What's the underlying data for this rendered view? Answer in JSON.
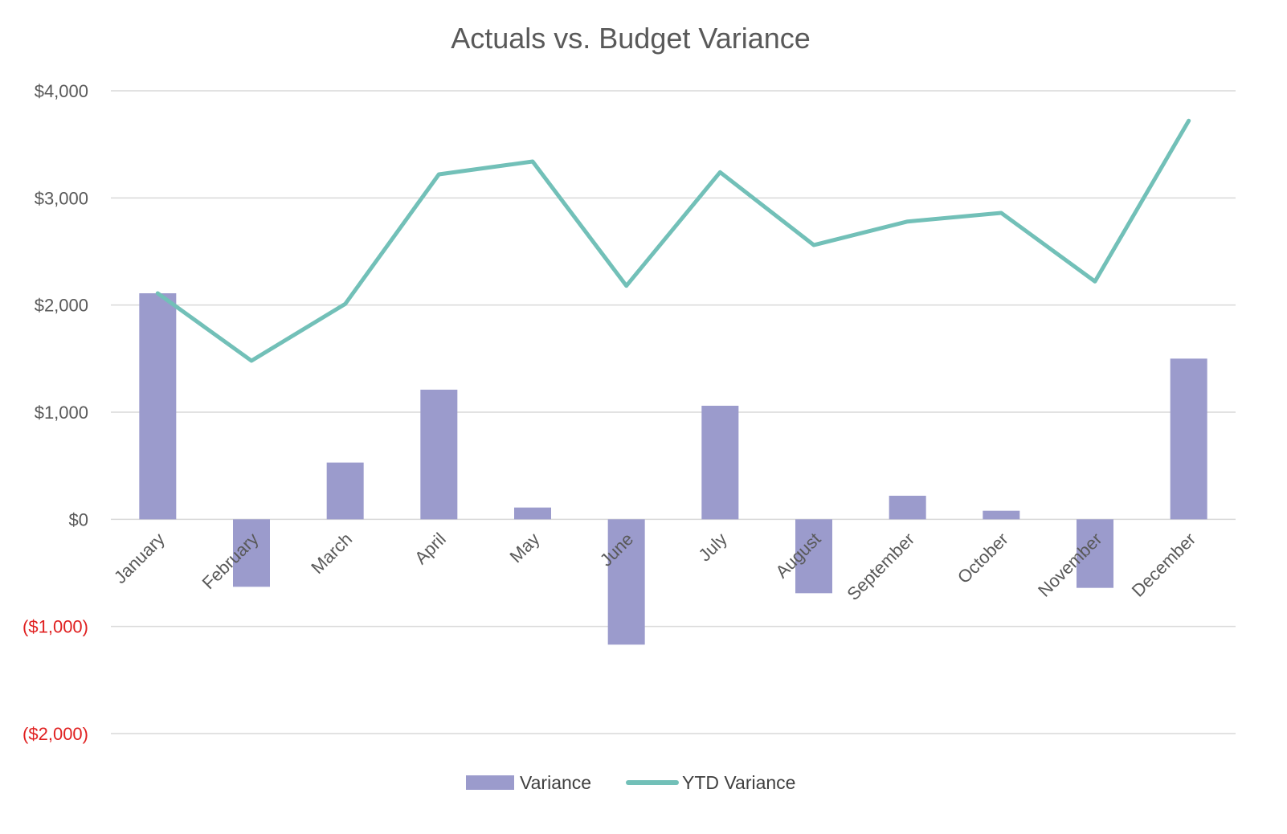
{
  "chart_data": {
    "type": "bar",
    "title": "Actuals vs. Budget Variance",
    "xlabel": "",
    "ylabel": "",
    "categories": [
      "January",
      "February",
      "March",
      "April",
      "May",
      "June",
      "July",
      "August",
      "September",
      "October",
      "November",
      "December"
    ],
    "series": [
      {
        "name": "Variance",
        "type": "bar",
        "color": "#9b9bcc",
        "values": [
          2110,
          -630,
          530,
          1210,
          110,
          -1170,
          1060,
          -690,
          220,
          80,
          -640,
          1500
        ]
      },
      {
        "name": "YTD Variance",
        "type": "line",
        "color": "#72c0b8",
        "values": [
          2110,
          1480,
          2010,
          3220,
          3340,
          2180,
          3240,
          2560,
          2780,
          2860,
          2220,
          3720
        ]
      }
    ],
    "ylim": [
      -2000,
      4000
    ],
    "yticks": [
      4000,
      3000,
      2000,
      1000,
      0,
      -1000,
      -2000
    ],
    "ytick_labels": [
      "$4,000",
      "$3,000",
      "$2,000",
      "$1,000",
      "$0",
      "($1,000)",
      "($2,000)"
    ],
    "negative_tick_color": "#e02020",
    "grid": true,
    "legend": "bottom"
  }
}
